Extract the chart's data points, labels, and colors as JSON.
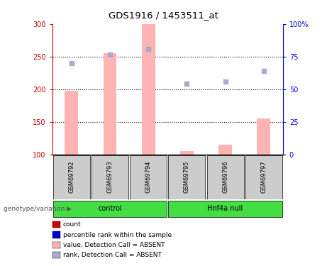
{
  "title": "GDS1916 / 1453511_at",
  "samples": [
    "GSM69792",
    "GSM69793",
    "GSM69794",
    "GSM69795",
    "GSM69796",
    "GSM69797"
  ],
  "bar_values": [
    197,
    255,
    300,
    105,
    115,
    155
  ],
  "bar_color": "#ffb3b3",
  "bar_bottom": 100,
  "dot_values": [
    240,
    253,
    262,
    208,
    212,
    228
  ],
  "dot_color": "#aaaacc",
  "ylim_left": [
    100,
    300
  ],
  "ylim_right": [
    0,
    100
  ],
  "yticks_left": [
    100,
    150,
    200,
    250,
    300
  ],
  "yticks_right": [
    0,
    25,
    50,
    75,
    100
  ],
  "ytick_labels_right": [
    "0",
    "25",
    "50",
    "75",
    "100%"
  ],
  "left_axis_color": "#cc0000",
  "right_axis_color": "#0000cc",
  "green_color": "#44dd44",
  "gray_color": "#cccccc",
  "group_label": "genotype/variation",
  "control_label": "control",
  "hnf4a_label": "Hnf4a null",
  "legend_labels": [
    "count",
    "percentile rank within the sample",
    "value, Detection Call = ABSENT",
    "rank, Detection Call = ABSENT"
  ],
  "legend_colors": [
    "#cc0000",
    "#0000cc",
    "#ffb3b3",
    "#aaaacc"
  ],
  "bar_width": 0.35,
  "figsize": [
    4.61,
    3.75
  ],
  "dpi": 100
}
